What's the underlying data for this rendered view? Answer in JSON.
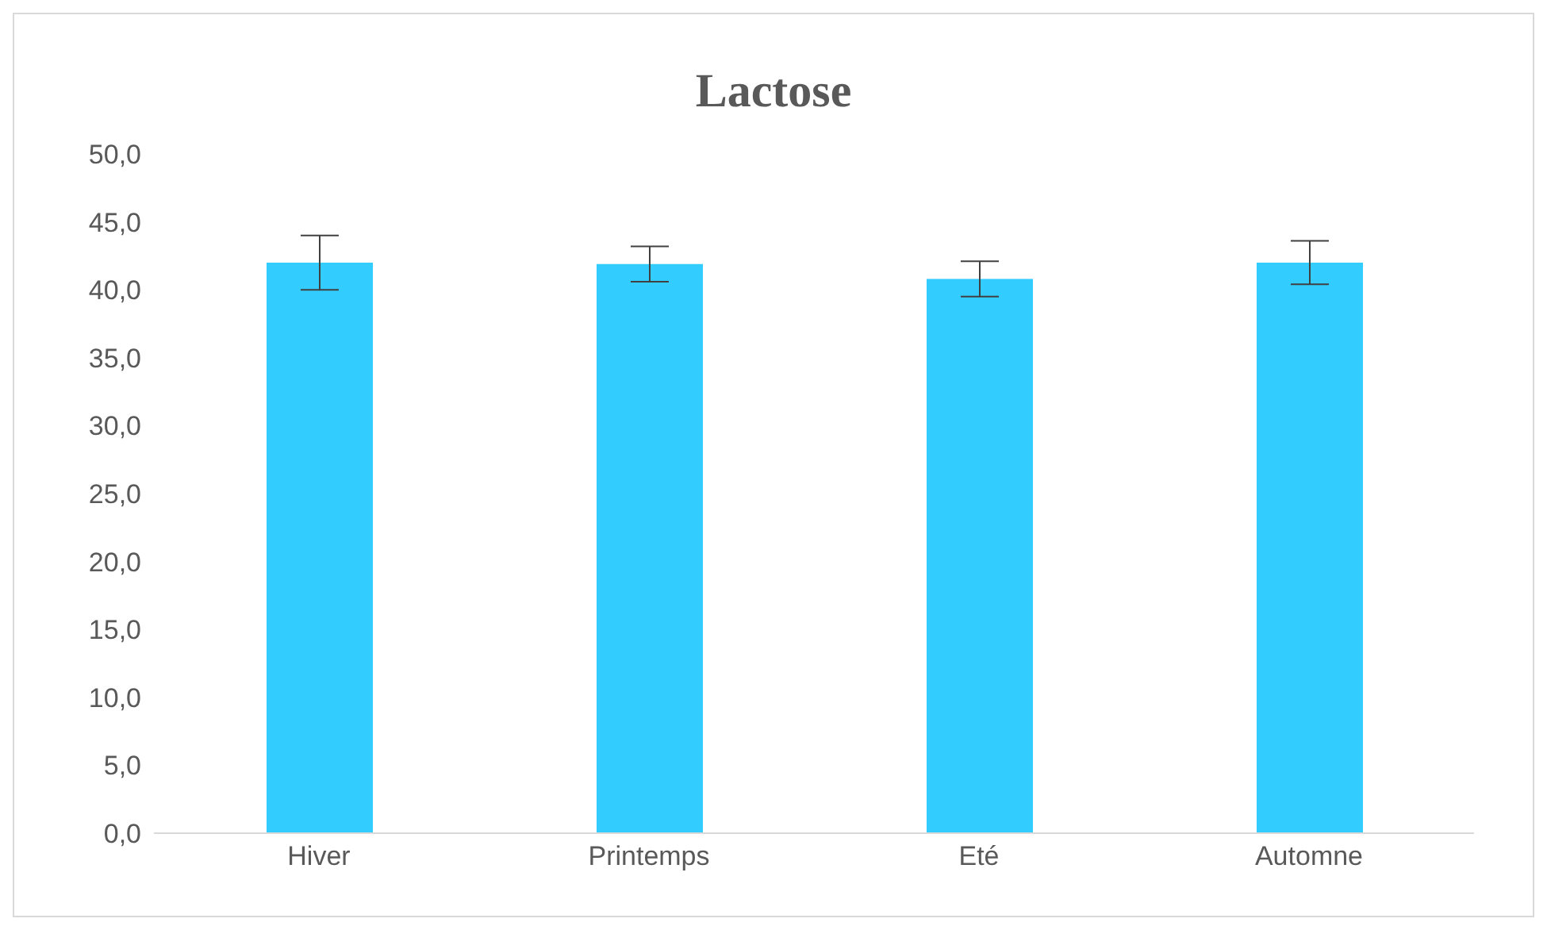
{
  "chart_data": {
    "type": "bar",
    "title": "Lactose",
    "categories": [
      "Hiver",
      "Printemps",
      "Eté",
      "Automne"
    ],
    "values": [
      42.0,
      41.9,
      40.8,
      42.0
    ],
    "errors": [
      2.0,
      1.3,
      1.3,
      1.6
    ],
    "color": "#33ccff",
    "ylim": [
      0,
      50
    ],
    "yticks": [
      {
        "value": 0,
        "label": "0,0"
      },
      {
        "value": 5,
        "label": "5,0"
      },
      {
        "value": 10,
        "label": "10,0"
      },
      {
        "value": 15,
        "label": "15,0"
      },
      {
        "value": 20,
        "label": "20,0"
      },
      {
        "value": 25,
        "label": "25,0"
      },
      {
        "value": 30,
        "label": "30,0"
      },
      {
        "value": 35,
        "label": "35,0"
      },
      {
        "value": 40,
        "label": "40,0"
      },
      {
        "value": 45,
        "label": "45,0"
      },
      {
        "value": 50,
        "label": "50,0"
      }
    ],
    "grid": false
  }
}
